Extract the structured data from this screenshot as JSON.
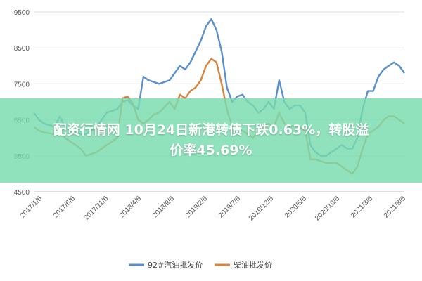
{
  "chart_data": {
    "type": "line",
    "title": "",
    "xlabel": "",
    "ylabel": "",
    "ylim": [
      4500,
      9500
    ],
    "yticks": [
      4500,
      5500,
      6500,
      7500,
      8500,
      9500
    ],
    "xtick_labels": [
      "2017/1/6",
      "2017/6/6",
      "2017/11/6",
      "2018/4/6",
      "2018/9/6",
      "2019/2/6",
      "2019/7/6",
      "2019/12/6",
      "2020/5/6",
      "2020/10/6",
      "2021/3/6",
      "2021/8/6"
    ],
    "grid": "horizontal",
    "legend_position": "bottom",
    "series": [
      {
        "name": "92#汽油批发价",
        "color": "#5b8fc9",
        "points": [
          [
            0,
            6700
          ],
          [
            1,
            6500
          ],
          [
            2,
            6400
          ],
          [
            4,
            6300
          ],
          [
            5,
            6600
          ],
          [
            6,
            6300
          ],
          [
            7,
            6200
          ],
          [
            9,
            6100
          ],
          [
            10,
            6100
          ],
          [
            12,
            6300
          ],
          [
            14,
            6700
          ],
          [
            16,
            6800
          ],
          [
            17,
            7000
          ],
          [
            18,
            7050
          ],
          [
            19,
            6900
          ],
          [
            20,
            6800
          ],
          [
            21,
            7700
          ],
          [
            22,
            7600
          ],
          [
            23,
            7550
          ],
          [
            24,
            7500
          ],
          [
            26,
            7600
          ],
          [
            27,
            7800
          ],
          [
            28,
            8000
          ],
          [
            29,
            7900
          ],
          [
            30,
            8100
          ],
          [
            31,
            8400
          ],
          [
            32,
            8700
          ],
          [
            33,
            9100
          ],
          [
            34,
            9300
          ],
          [
            35,
            9000
          ],
          [
            36,
            8400
          ],
          [
            37,
            7400
          ],
          [
            38,
            7000
          ],
          [
            39,
            7150
          ],
          [
            40,
            7200
          ],
          [
            41,
            7000
          ],
          [
            42,
            6900
          ],
          [
            43,
            6700
          ],
          [
            44,
            6800
          ],
          [
            45,
            7000
          ],
          [
            46,
            6800
          ],
          [
            47,
            7600
          ],
          [
            48,
            7000
          ],
          [
            49,
            6800
          ],
          [
            50,
            6900
          ],
          [
            51,
            6900
          ],
          [
            52,
            6700
          ],
          [
            53,
            5800
          ],
          [
            54,
            5600
          ],
          [
            55,
            5500
          ],
          [
            56,
            5500
          ],
          [
            57,
            5600
          ],
          [
            58,
            5700
          ],
          [
            59,
            5800
          ],
          [
            60,
            5700
          ],
          [
            61,
            5700
          ],
          [
            62,
            6000
          ],
          [
            63,
            6800
          ],
          [
            64,
            7300
          ],
          [
            65,
            7300
          ],
          [
            66,
            7700
          ],
          [
            67,
            7900
          ],
          [
            68,
            8000
          ],
          [
            69,
            8100
          ],
          [
            70,
            8000
          ],
          [
            71,
            7800
          ]
        ]
      },
      {
        "name": "柴油批发价",
        "color": "#d8843e",
        "points": [
          [
            0,
            6300
          ],
          [
            1,
            6200
          ],
          [
            2,
            6150
          ],
          [
            4,
            6100
          ],
          [
            5,
            6300
          ],
          [
            6,
            6000
          ],
          [
            7,
            5900
          ],
          [
            9,
            5700
          ],
          [
            10,
            5500
          ],
          [
            12,
            5600
          ],
          [
            14,
            5800
          ],
          [
            16,
            6000
          ],
          [
            17,
            7100
          ],
          [
            18,
            7150
          ],
          [
            19,
            6950
          ],
          [
            20,
            6500
          ],
          [
            21,
            6400
          ],
          [
            22,
            6500
          ],
          [
            23,
            6650
          ],
          [
            24,
            6700
          ],
          [
            26,
            7000
          ],
          [
            27,
            6800
          ],
          [
            28,
            7200
          ],
          [
            29,
            7100
          ],
          [
            30,
            7300
          ],
          [
            31,
            7400
          ],
          [
            32,
            7600
          ],
          [
            33,
            8000
          ],
          [
            34,
            8200
          ],
          [
            35,
            8100
          ],
          [
            36,
            7500
          ],
          [
            37,
            6800
          ],
          [
            38,
            6300
          ],
          [
            39,
            6250
          ],
          [
            40,
            6200
          ],
          [
            41,
            6100
          ],
          [
            42,
            6000
          ],
          [
            43,
            6200
          ],
          [
            44,
            6350
          ],
          [
            45,
            6400
          ],
          [
            46,
            6300
          ],
          [
            47,
            6700
          ],
          [
            48,
            6400
          ],
          [
            49,
            6300
          ],
          [
            50,
            6350
          ],
          [
            51,
            6300
          ],
          [
            52,
            6200
          ],
          [
            53,
            5400
          ],
          [
            54,
            5400
          ],
          [
            55,
            5350
          ],
          [
            56,
            5300
          ],
          [
            57,
            5300
          ],
          [
            58,
            5300
          ],
          [
            59,
            5200
          ],
          [
            60,
            5100
          ],
          [
            61,
            5000
          ],
          [
            62,
            5200
          ],
          [
            63,
            5700
          ],
          [
            64,
            6100
          ],
          [
            65,
            6200
          ],
          [
            66,
            6300
          ],
          [
            67,
            6500
          ],
          [
            68,
            6600
          ],
          [
            69,
            6600
          ],
          [
            70,
            6500
          ],
          [
            71,
            6400
          ]
        ]
      }
    ]
  },
  "overlay": {
    "line1": "配资行情网 10月24日新港转债下跌0.63%，转股溢",
    "line2": "价率45.69%"
  }
}
